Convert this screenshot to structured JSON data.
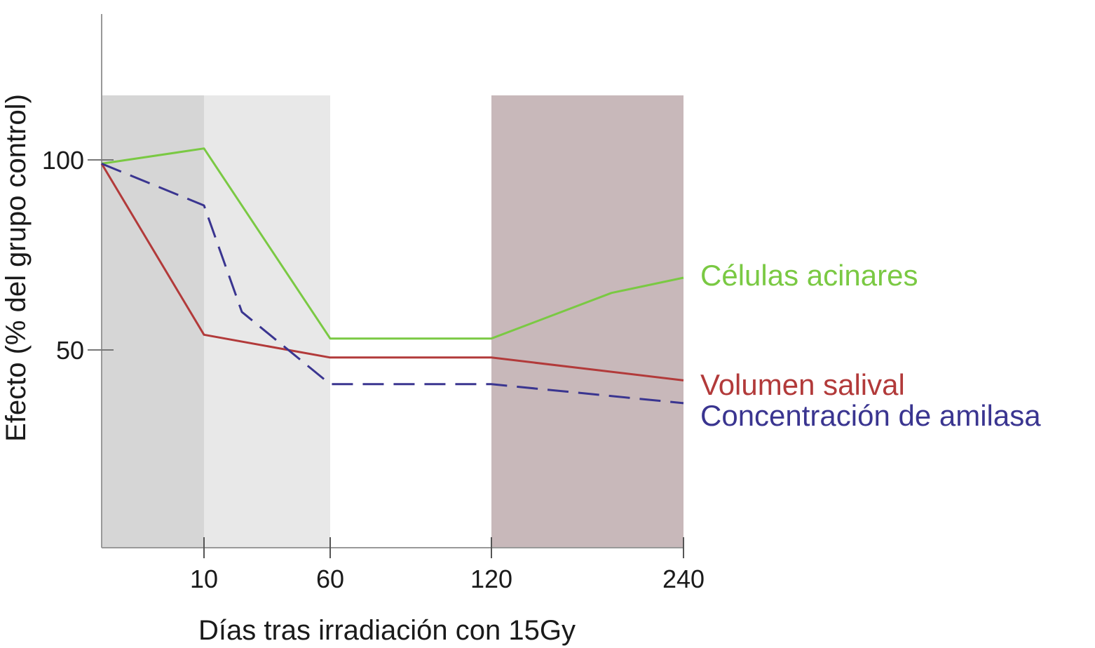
{
  "chart_data": {
    "type": "line",
    "xlabel": "Días tras irradiación con 15Gy",
    "ylabel": "Efecto (% del grupo control)",
    "x_ticks": [
      10,
      60,
      120,
      240
    ],
    "y_ticks": [
      50,
      100
    ],
    "x_scale": "categorical-uneven",
    "grid": false,
    "shaded_regions": [
      {
        "from": 0,
        "to": 10,
        "color": "#d6d6d6"
      },
      {
        "from": 10,
        "to": 60,
        "color": "#e8e8e8"
      },
      {
        "from": 120,
        "to": 240,
        "color": "#c8b8ba"
      }
    ],
    "series": [
      {
        "name": "Células acinares",
        "color": "#7ac943",
        "dash": "solid",
        "points": [
          [
            0,
            99
          ],
          [
            10,
            103
          ],
          [
            60,
            53
          ],
          [
            120,
            53
          ],
          [
            195,
            65
          ],
          [
            240,
            69
          ]
        ]
      },
      {
        "name": "Volumen salival",
        "color": "#b23a3a",
        "dash": "solid",
        "points": [
          [
            0,
            99
          ],
          [
            10,
            54
          ],
          [
            60,
            48
          ],
          [
            120,
            48
          ],
          [
            240,
            42
          ]
        ]
      },
      {
        "name": "Concentración de amilasa",
        "color": "#3a3590",
        "dash": "dashed",
        "points": [
          [
            0,
            99
          ],
          [
            10,
            88
          ],
          [
            25,
            60
          ],
          [
            60,
            41
          ],
          [
            120,
            41
          ],
          [
            240,
            36
          ]
        ]
      }
    ]
  }
}
